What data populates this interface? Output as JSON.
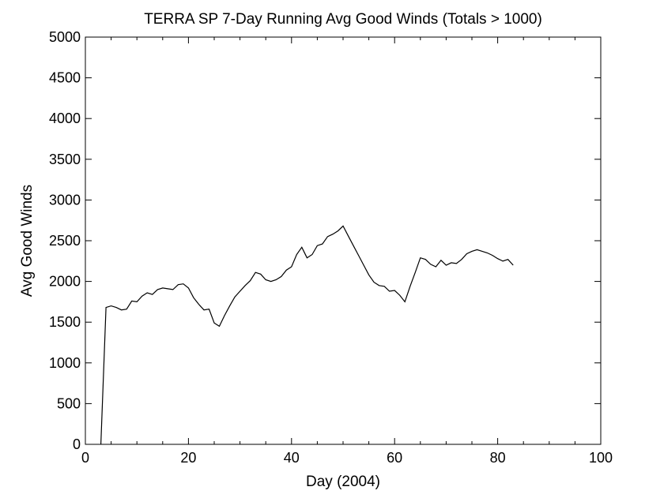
{
  "chart_data": {
    "type": "line",
    "title": "TERRA SP 7-Day Running Avg Good Winds (Totals > 1000)",
    "xlabel": "Day (2004)",
    "ylabel": "Avg Good Winds",
    "xlim": [
      0,
      100
    ],
    "ylim": [
      0,
      5000
    ],
    "xticks": [
      "0",
      "20",
      "40",
      "60",
      "80",
      "100"
    ],
    "yticks": [
      "0",
      "500",
      "1000",
      "1500",
      "2000",
      "2500",
      "3000",
      "3500",
      "4000",
      "4500",
      "5000"
    ],
    "grid": false,
    "line_color": "#000000",
    "series": [
      {
        "x": [
          3,
          4,
          5,
          6,
          7,
          8,
          9,
          10,
          11,
          12,
          13,
          14,
          15,
          16,
          17,
          18,
          19,
          20,
          21,
          22,
          23,
          24,
          25,
          26,
          27,
          28,
          29,
          30,
          31,
          32,
          33,
          34,
          35,
          36,
          37,
          38,
          39,
          40,
          41,
          42,
          43,
          44,
          45,
          46,
          47,
          48,
          49,
          50,
          51,
          52,
          53,
          54,
          55,
          56,
          57,
          58,
          59,
          60,
          61,
          62,
          63,
          64,
          65,
          66,
          67,
          68,
          69,
          70,
          71,
          72,
          73,
          74,
          75,
          76,
          77,
          78,
          79,
          80,
          81,
          82,
          83
        ],
        "y": [
          0,
          1680,
          1700,
          1680,
          1650,
          1660,
          1760,
          1750,
          1820,
          1860,
          1840,
          1900,
          1920,
          1910,
          1900,
          1960,
          1970,
          1920,
          1800,
          1720,
          1650,
          1660,
          1490,
          1450,
          1580,
          1700,
          1810,
          1880,
          1950,
          2010,
          2110,
          2090,
          2020,
          2000,
          2020,
          2060,
          2140,
          2180,
          2330,
          2420,
          2290,
          2330,
          2440,
          2460,
          2550,
          2580,
          2620,
          2680,
          2560,
          2440,
          2320,
          2200,
          2080,
          1990,
          1950,
          1940,
          1880,
          1890,
          1830,
          1750,
          1940,
          2110,
          2290,
          2270,
          2210,
          2180,
          2260,
          2200,
          2230,
          2220,
          2270,
          2340,
          2370,
          2390,
          2370,
          2350,
          2320,
          2280,
          2250,
          2270,
          2200
        ]
      }
    ]
  }
}
